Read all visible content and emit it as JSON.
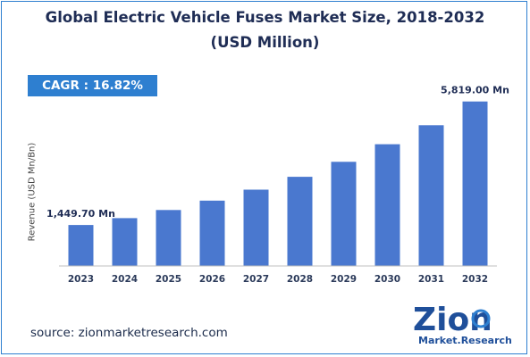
{
  "chart_data": {
    "type": "bar",
    "title": "Global Electric Vehicle Fuses Market Size, 2018-2032",
    "subtitle": "(USD Million)",
    "ylabel": "Revenue (USD Mn/Bn)",
    "xlabel": "",
    "categories": [
      "2023",
      "2024",
      "2025",
      "2026",
      "2027",
      "2028",
      "2029",
      "2030",
      "2031",
      "2032"
    ],
    "values": [
      1449.7,
      1694,
      1979,
      2312,
      2700,
      3155,
      3686,
      4306,
      4980,
      5819.0
    ],
    "data_labels": [
      "1,449.70 Mn",
      "",
      "",
      "",
      "",
      "",
      "",
      "",
      "",
      "5,819.00 Mn"
    ],
    "ylim": [
      0,
      6000
    ],
    "grid": false,
    "bar_color": "#4a78cf"
  },
  "cagr_label": "CAGR : 16.82%",
  "source": "source: zionmarketresearch.com",
  "logo": {
    "name": "Zion",
    "tagline": "Market.Research."
  },
  "colors": {
    "accent": "#2e7fd0",
    "title": "#1f2d55"
  }
}
